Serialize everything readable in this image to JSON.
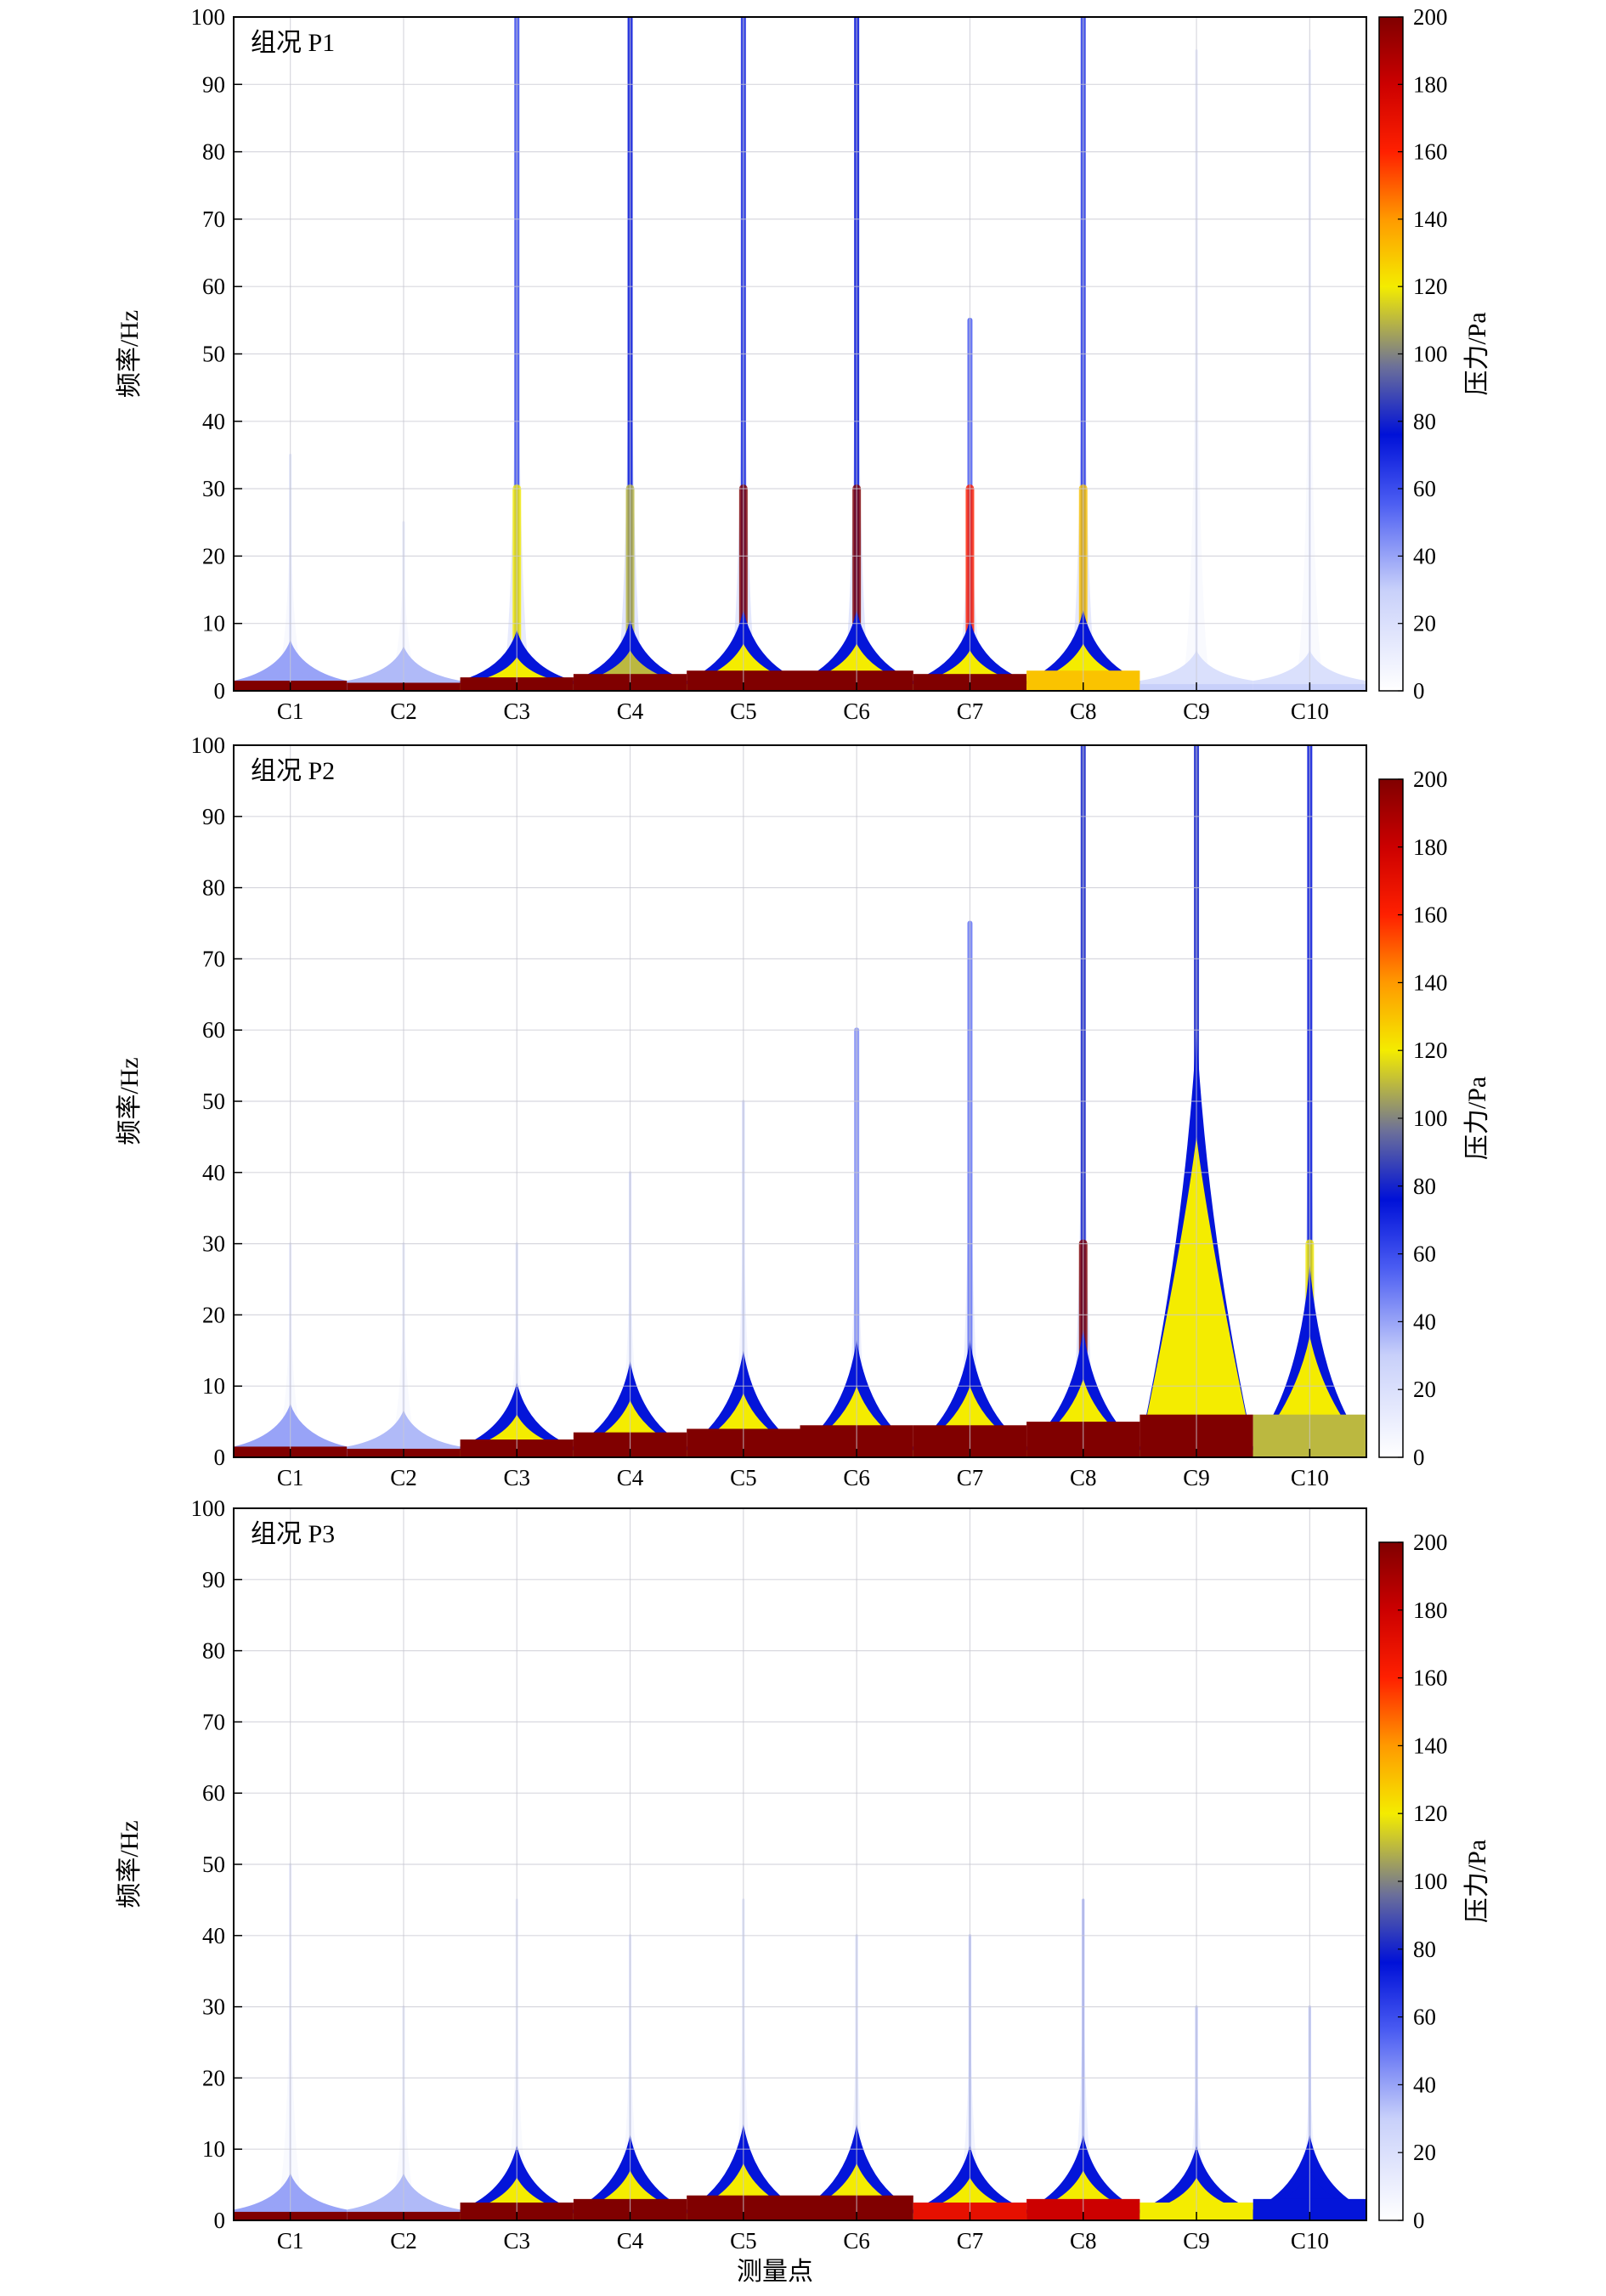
{
  "chart_data": {
    "type": "heatmap",
    "x_title": "测量点",
    "y_title": "频率/Hz",
    "colorbar_title": "压力/Pa",
    "categories": [
      "C1",
      "C2",
      "C3",
      "C4",
      "C5",
      "C6",
      "C7",
      "C8",
      "C9",
      "C10"
    ],
    "y_ticks": [
      0,
      10,
      20,
      30,
      40,
      50,
      60,
      70,
      80,
      90,
      100
    ],
    "ylim": [
      0,
      100
    ],
    "colorbar_ticks": [
      0,
      20,
      40,
      60,
      80,
      100,
      120,
      140,
      160,
      180,
      200
    ],
    "color_range": [
      0,
      200
    ],
    "colorscale": [
      [
        0.0,
        "#ffffff"
      ],
      [
        0.15,
        "#c8d0fa"
      ],
      [
        0.28,
        "#4a5cf2"
      ],
      [
        0.38,
        "#0011d8"
      ],
      [
        0.48,
        "#6b6f9a"
      ],
      [
        0.6,
        "#f4ec00"
      ],
      [
        0.7,
        "#ff9a00"
      ],
      [
        0.8,
        "#ff2000"
      ],
      [
        0.9,
        "#cc0000"
      ],
      [
        1.0,
        "#800000"
      ]
    ],
    "grid": true,
    "panels": [
      {
        "title": "组况 P1",
        "columns": [
          {
            "name": "C1",
            "base": 200,
            "bandwidth": 1.5,
            "halo": 40,
            "spike_top": 35,
            "spike_level": 18
          },
          {
            "name": "C2",
            "base": 200,
            "bandwidth": 1.2,
            "halo": 35,
            "spike_top": 25,
            "spike_level": 15
          },
          {
            "name": "C3",
            "base": 200,
            "bandwidth": 2.0,
            "halo": 120,
            "spike_top": 100,
            "spike_level": 60
          },
          {
            "name": "C4",
            "base": 200,
            "bandwidth": 2.5,
            "halo": 110,
            "spike_top": 100,
            "spike_level": 75
          },
          {
            "name": "C5",
            "base": 200,
            "bandwidth": 3.0,
            "halo": 200,
            "spike_top": 100,
            "spike_level": 70
          },
          {
            "name": "C6",
            "base": 200,
            "bandwidth": 3.0,
            "halo": 200,
            "spike_top": 100,
            "spike_level": 75
          },
          {
            "name": "C7",
            "base": 200,
            "bandwidth": 2.5,
            "halo": 160,
            "spike_top": 55,
            "spike_level": 55
          },
          {
            "name": "C8",
            "base": 130,
            "bandwidth": 3.0,
            "halo": 130,
            "spike_top": 100,
            "spike_level": 65
          },
          {
            "name": "C9",
            "base": 30,
            "bandwidth": 1.0,
            "halo": 20,
            "spike_top": 95,
            "spike_level": 15
          },
          {
            "name": "C10",
            "base": 30,
            "bandwidth": 1.0,
            "halo": 20,
            "spike_top": 95,
            "spike_level": 15
          }
        ]
      },
      {
        "title": "组况 P2",
        "columns": [
          {
            "name": "C1",
            "base": 200,
            "bandwidth": 1.5,
            "halo": 40,
            "spike_top": 30,
            "spike_level": 15
          },
          {
            "name": "C2",
            "base": 200,
            "bandwidth": 1.2,
            "halo": 35,
            "spike_top": 30,
            "spike_level": 15
          },
          {
            "name": "C3",
            "base": 200,
            "bandwidth": 2.5,
            "halo": 200,
            "spike_top": 30,
            "spike_level": 20
          },
          {
            "name": "C4",
            "base": 200,
            "bandwidth": 3.5,
            "halo": 200,
            "spike_top": 40,
            "spike_level": 25
          },
          {
            "name": "C5",
            "base": 200,
            "bandwidth": 4.0,
            "halo": 200,
            "spike_top": 50,
            "spike_level": 30
          },
          {
            "name": "C6",
            "base": 200,
            "bandwidth": 4.5,
            "halo": 200,
            "spike_top": 60,
            "spike_level": 45
          },
          {
            "name": "C7",
            "base": 200,
            "bandwidth": 4.5,
            "halo": 200,
            "spike_top": 75,
            "spike_level": 50
          },
          {
            "name": "C8",
            "base": 200,
            "bandwidth": 5.0,
            "halo": 200,
            "spike_top": 100,
            "spike_level": 80
          },
          {
            "name": "C9",
            "base": 200,
            "bandwidth": 30.0,
            "halo": 200,
            "spike_top": 100,
            "spike_level": 80
          },
          {
            "name": "C10",
            "base": 110,
            "bandwidth": 8.0,
            "halo": 120,
            "spike_top": 100,
            "spike_level": 75
          }
        ]
      },
      {
        "title": "组况 P3",
        "columns": [
          {
            "name": "C1",
            "base": 200,
            "bandwidth": 1.2,
            "halo": 40,
            "spike_top": 50,
            "spike_level": 15
          },
          {
            "name": "C2",
            "base": 200,
            "bandwidth": 1.2,
            "halo": 35,
            "spike_top": 30,
            "spike_level": 15
          },
          {
            "name": "C3",
            "base": 200,
            "bandwidth": 2.5,
            "halo": 120,
            "spike_top": 45,
            "spike_level": 15
          },
          {
            "name": "C4",
            "base": 200,
            "bandwidth": 3.0,
            "halo": 200,
            "spike_top": 40,
            "spike_level": 20
          },
          {
            "name": "C5",
            "base": 200,
            "bandwidth": 3.5,
            "halo": 200,
            "spike_top": 45,
            "spike_level": 20
          },
          {
            "name": "C6",
            "base": 200,
            "bandwidth": 3.5,
            "halo": 200,
            "spike_top": 40,
            "spike_level": 25
          },
          {
            "name": "C7",
            "base": 170,
            "bandwidth": 2.5,
            "halo": 170,
            "spike_top": 40,
            "spike_level": 35
          },
          {
            "name": "C8",
            "base": 180,
            "bandwidth": 3.0,
            "halo": 180,
            "spike_top": 45,
            "spike_level": 40
          },
          {
            "name": "C9",
            "base": 120,
            "bandwidth": 2.5,
            "halo": 120,
            "spike_top": 30,
            "spike_level": 35
          },
          {
            "name": "C10",
            "base": 75,
            "bandwidth": 3.0,
            "halo": 75,
            "spike_top": 30,
            "spike_level": 35
          }
        ]
      }
    ]
  }
}
